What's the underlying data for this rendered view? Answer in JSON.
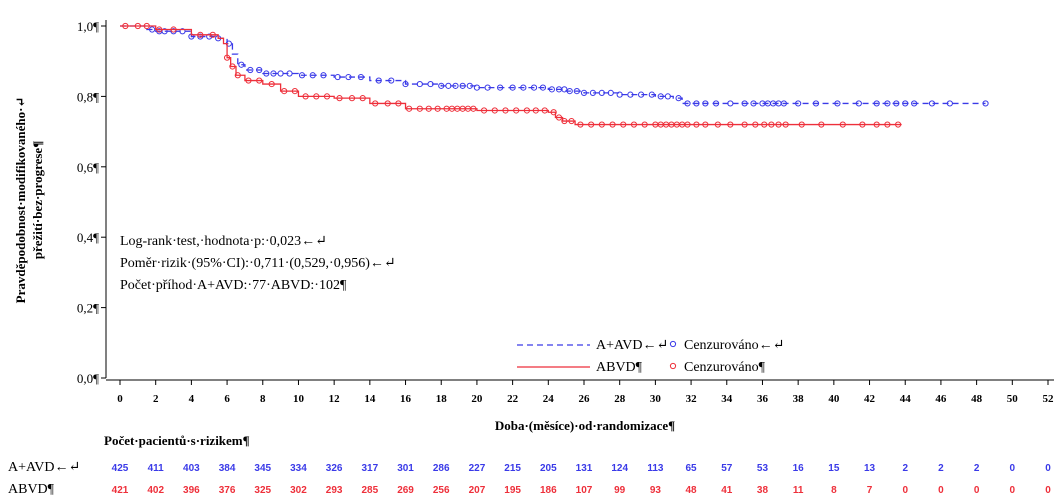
{
  "chart_data": {
    "type": "line",
    "title": "",
    "ylabel_lines": [
      "Pravděpodobnost·modifikovaného·↵",
      "přežití·bez·progrese¶"
    ],
    "xlabel": "Doba·(měsíce)·od·randomizace¶",
    "ylim": [
      0,
      1
    ],
    "xlim": [
      0,
      52
    ],
    "x_ticks": [
      0,
      2,
      4,
      6,
      8,
      10,
      12,
      14,
      16,
      18,
      20,
      22,
      24,
      26,
      28,
      30,
      32,
      34,
      36,
      38,
      40,
      42,
      44,
      46,
      48,
      50,
      52
    ],
    "y_ticks": [
      {
        "value": 0.0,
        "label": "0,0¶"
      },
      {
        "value": 0.2,
        "label": "0,2¶"
      },
      {
        "value": 0.4,
        "label": "0,4¶"
      },
      {
        "value": 0.6,
        "label": "0,6¶"
      },
      {
        "value": 0.8,
        "label": "0,8¶"
      },
      {
        "value": 1.0,
        "label": "1,0¶"
      }
    ],
    "grid": false,
    "legend_position": "bottom-right",
    "legend": [
      {
        "series": "A+AVD←↵",
        "censored_label": "Cenzurováno←↵"
      },
      {
        "series": "ABVD¶",
        "censored_label": "Cenzurováno¶"
      }
    ],
    "annotations": [
      "Log-rank·test,·hodnota·p:·0,023←↵",
      "Poměr·rizik·(95%·CI):·0,711·(0,529,·0,956)←↵",
      "Počet·příhod·A+AVD:·77·ABVD:·102¶"
    ],
    "series": [
      {
        "name": "A+AVD",
        "color": "#3a3ae8",
        "dash": "dashed",
        "x": [
          0,
          1.5,
          2,
          4,
          5.5,
          6,
          6.3,
          6.6,
          7,
          8,
          10,
          12,
          14,
          16,
          18,
          20,
          22,
          24,
          25,
          26,
          28,
          30,
          31,
          31.5,
          34,
          36,
          40,
          44,
          48.5
        ],
        "y": [
          1.0,
          0.99,
          0.985,
          0.97,
          0.965,
          0.95,
          0.92,
          0.89,
          0.875,
          0.865,
          0.86,
          0.855,
          0.845,
          0.835,
          0.83,
          0.825,
          0.825,
          0.82,
          0.815,
          0.81,
          0.805,
          0.8,
          0.795,
          0.78,
          0.78,
          0.78,
          0.78,
          0.78,
          0.78
        ],
        "censored_x": [
          1.8,
          2.2,
          2.5,
          3,
          3.5,
          4,
          4.5,
          5,
          5.5,
          6.1,
          6.8,
          7.3,
          7.8,
          8.2,
          8.6,
          9,
          9.5,
          10.2,
          10.8,
          11.4,
          12.2,
          12.8,
          13.5,
          14.5,
          15.2,
          16,
          16.8,
          17.4,
          18,
          18.4,
          18.8,
          19.2,
          19.6,
          20,
          20.6,
          21.3,
          22,
          22.6,
          23.2,
          23.7,
          24.2,
          24.6,
          24.9,
          25.2,
          25.6,
          26,
          26.5,
          27,
          27.5,
          28,
          28.6,
          29.2,
          29.8,
          30.3,
          30.7,
          31.3,
          31.8,
          32.3,
          32.8,
          33.4,
          34.2,
          35,
          35.5,
          36,
          36.3,
          36.6,
          36.9,
          37.2,
          38,
          39,
          40.2,
          41.4,
          42.4,
          43,
          43.5,
          44,
          44.5,
          45.5,
          46.5,
          48.5
        ],
        "risk_counts": [
          425,
          411,
          403,
          384,
          345,
          334,
          326,
          317,
          301,
          286,
          227,
          215,
          205,
          131,
          124,
          113,
          65,
          57,
          53,
          16,
          15,
          13,
          2,
          2,
          2,
          0,
          0
        ]
      },
      {
        "name": "ABVD",
        "color": "#ee2f3a",
        "dash": "solid",
        "x": [
          0,
          2,
          4,
          5.5,
          5.8,
          6,
          6.2,
          6.5,
          7,
          8,
          9,
          10,
          12,
          14,
          16,
          20,
          24,
          24.4,
          24.8,
          25.5,
          26,
          30,
          34,
          38,
          42,
          43.8
        ],
        "y": [
          1.0,
          0.99,
          0.975,
          0.965,
          0.95,
          0.91,
          0.885,
          0.86,
          0.845,
          0.835,
          0.815,
          0.8,
          0.795,
          0.78,
          0.765,
          0.76,
          0.755,
          0.74,
          0.73,
          0.72,
          0.72,
          0.72,
          0.72,
          0.72,
          0.72,
          0.72
        ],
        "censored_x": [
          0.3,
          1,
          1.5,
          2.2,
          3,
          4.5,
          5.2,
          6,
          6.3,
          6.6,
          7.2,
          7.8,
          8.5,
          9.2,
          9.8,
          10.4,
          11,
          11.6,
          12.3,
          13,
          13.6,
          14.3,
          15,
          15.6,
          16.2,
          16.8,
          17.3,
          17.8,
          18.3,
          18.6,
          18.9,
          19.2,
          19.5,
          19.8,
          20.4,
          21,
          21.6,
          22.2,
          22.8,
          23.3,
          23.8,
          24.3,
          24.6,
          24.9,
          25.3,
          25.8,
          26.4,
          27,
          27.6,
          28.2,
          28.8,
          29.4,
          30,
          30.3,
          30.6,
          30.9,
          31.2,
          31.5,
          31.8,
          32.3,
          32.8,
          33.5,
          34.2,
          35,
          35.6,
          36.1,
          36.5,
          36.9,
          37.3,
          38.2,
          39.3,
          40.5,
          41.6,
          42.4,
          43,
          43.6
        ],
        "risk_counts": [
          421,
          402,
          396,
          376,
          325,
          302,
          293,
          285,
          269,
          256,
          207,
          195,
          186,
          107,
          99,
          93,
          48,
          41,
          38,
          11,
          8,
          7,
          0,
          0,
          0,
          0,
          0
        ]
      }
    ],
    "risk_table": {
      "title": "Počet·pacientů·s·rizikem¶",
      "row_labels": [
        "A+AVD←↵",
        "ABVD¶"
      ]
    }
  }
}
